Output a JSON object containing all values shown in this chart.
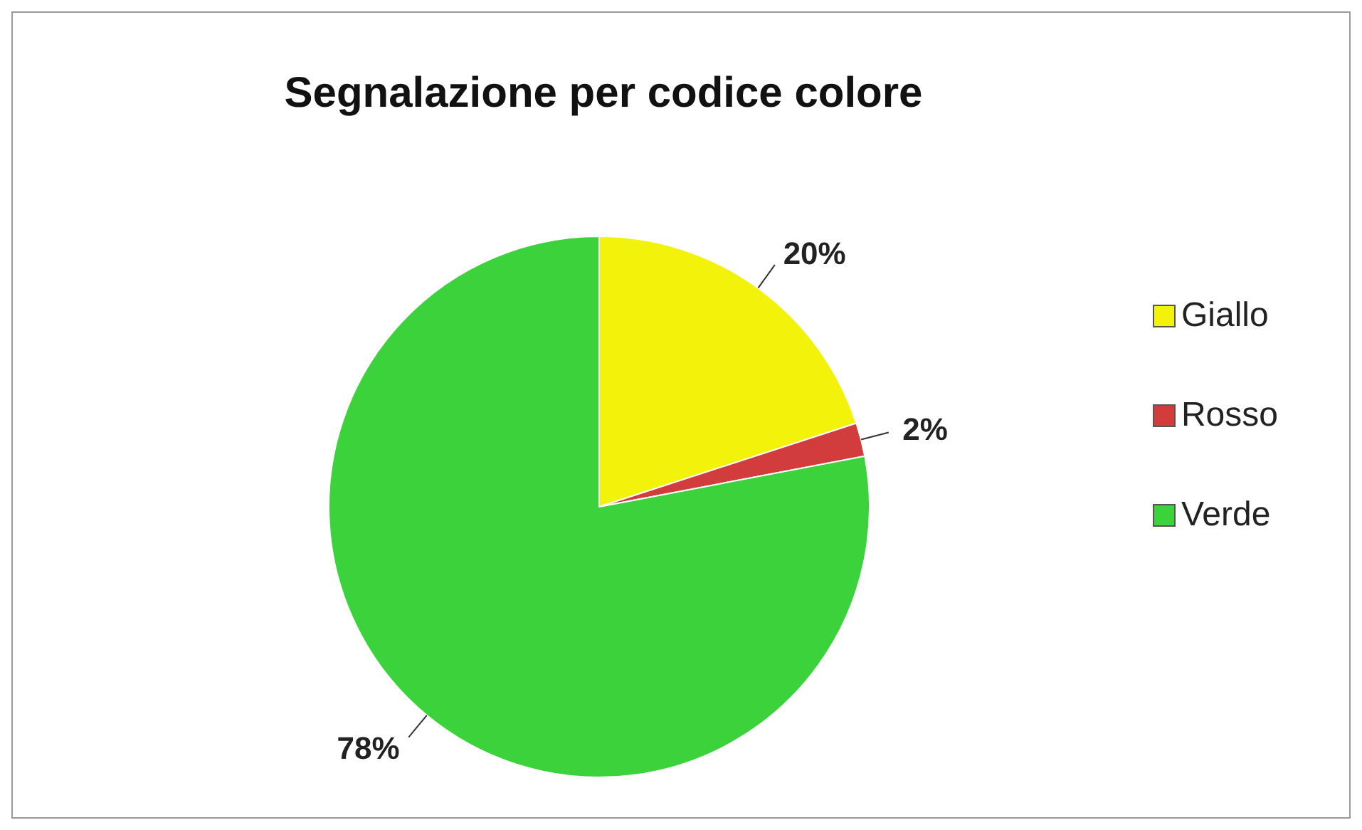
{
  "chart_data": {
    "type": "pie",
    "title": "Segnalazione per codice colore",
    "categories": [
      "Giallo",
      "Rosso",
      "Verde"
    ],
    "values": [
      20,
      2,
      78
    ],
    "colors": [
      "#f2f20a",
      "#d23c3c",
      "#3cd23c"
    ],
    "value_labels": [
      "20%",
      "2%",
      "78%"
    ],
    "legend": "right"
  }
}
